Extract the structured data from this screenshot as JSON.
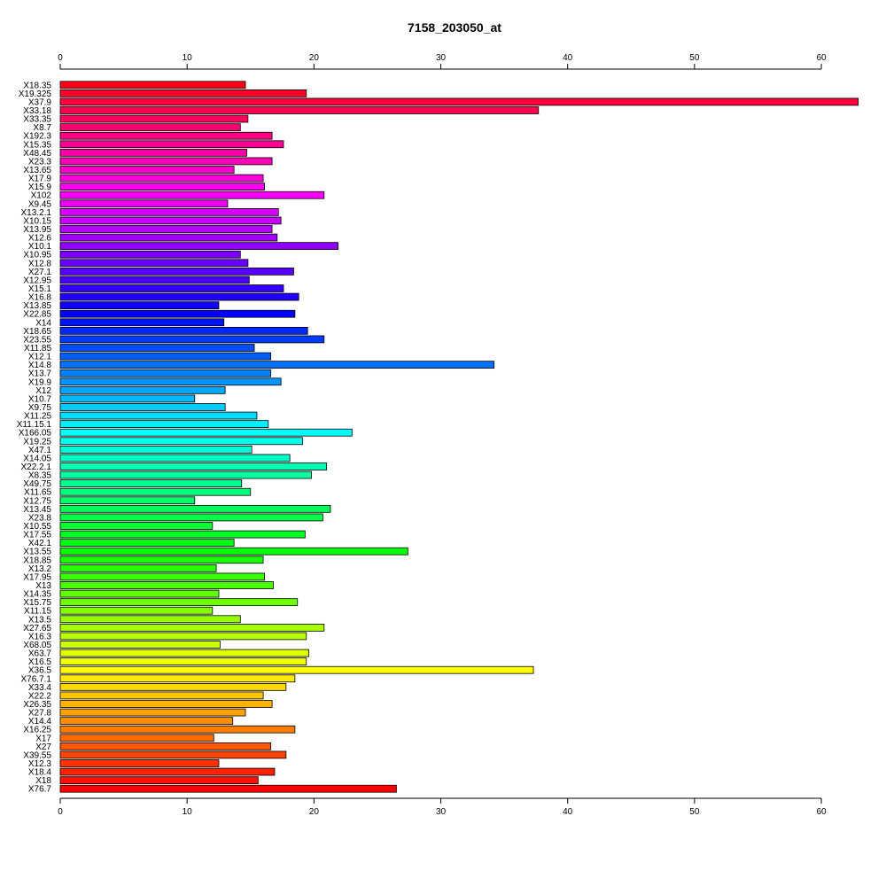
{
  "chart_data": {
    "type": "bar",
    "orientation": "horizontal",
    "title": "7158_203050_at",
    "xlabel": "",
    "ylabel": "",
    "xlim": [
      0,
      63
    ],
    "x_ticks": [
      0,
      10,
      20,
      30,
      40,
      50,
      60
    ],
    "axes": [
      "top",
      "bottom"
    ],
    "grid": false,
    "legend": "none",
    "bar_outline": "#000000",
    "color_scheme": "rainbow (red → magenta → blue → cyan → green → yellow → orange → red)",
    "categories": [
      "X18.35",
      "X19.325",
      "X37.9",
      "X33.18",
      "X33.35",
      "X8.7",
      "X192.3",
      "X15.35",
      "X48.45",
      "X23.3",
      "X13.65",
      "X17.9",
      "X15.9",
      "X102",
      "X9.45",
      "X13.2.1",
      "X10.15",
      "X13.95",
      "X12.6",
      "X10.1",
      "X10.95",
      "X12.8",
      "X27.1",
      "X12.95",
      "X15.1",
      "X16.8",
      "X13.85",
      "X22.85",
      "X14",
      "X18.65",
      "X23.55",
      "X11.85",
      "X12.1",
      "X14.8",
      "X13.7",
      "X19.9",
      "X12",
      "X10.7",
      "X9.75",
      "X11.25",
      "X11.15.1",
      "X166.05",
      "X19.25",
      "X47.1",
      "X14.05",
      "X22.2.1",
      "X8.35",
      "X49.75",
      "X11.65",
      "X12.75",
      "X13.45",
      "X23.8",
      "X10.55",
      "X17.55",
      "X42.1",
      "X13.55",
      "X18.85",
      "X13.2",
      "X17.95",
      "X13",
      "X14.35",
      "X15.75",
      "X11.15",
      "X13.5",
      "X27.65",
      "X16.3",
      "X68.05",
      "X63.7",
      "X16.5",
      "X36.5",
      "X76.7.1",
      "X33.4",
      "X22.2",
      "X26.35",
      "X27.8",
      "X14.4",
      "X16.25",
      "X17",
      "X27",
      "X39.55",
      "X12.3",
      "X18.4",
      "X18",
      "X76.7"
    ],
    "values": [
      14.6,
      19.4,
      62.9,
      37.7,
      14.8,
      14.2,
      16.7,
      17.6,
      14.7,
      16.7,
      13.7,
      16.0,
      16.1,
      20.8,
      13.2,
      17.2,
      17.4,
      16.7,
      17.1,
      21.9,
      14.2,
      14.8,
      18.4,
      14.9,
      17.6,
      18.8,
      12.5,
      18.5,
      12.9,
      19.5,
      20.8,
      15.3,
      16.6,
      34.2,
      16.6,
      17.4,
      13.0,
      10.6,
      13.0,
      15.5,
      16.4,
      23.0,
      19.1,
      15.1,
      18.1,
      21.0,
      19.8,
      14.3,
      15.0,
      10.6,
      21.3,
      20.7,
      12.0,
      19.3,
      13.7,
      27.4,
      16.0,
      12.3,
      16.1,
      16.8,
      12.5,
      18.7,
      12.0,
      14.2,
      20.8,
      19.4,
      12.6,
      19.6,
      19.4,
      37.3,
      18.5,
      17.8,
      16.0,
      16.7,
      14.6,
      13.6,
      18.5,
      12.1,
      16.6,
      17.8,
      12.5,
      16.9,
      15.6,
      26.5
    ]
  }
}
